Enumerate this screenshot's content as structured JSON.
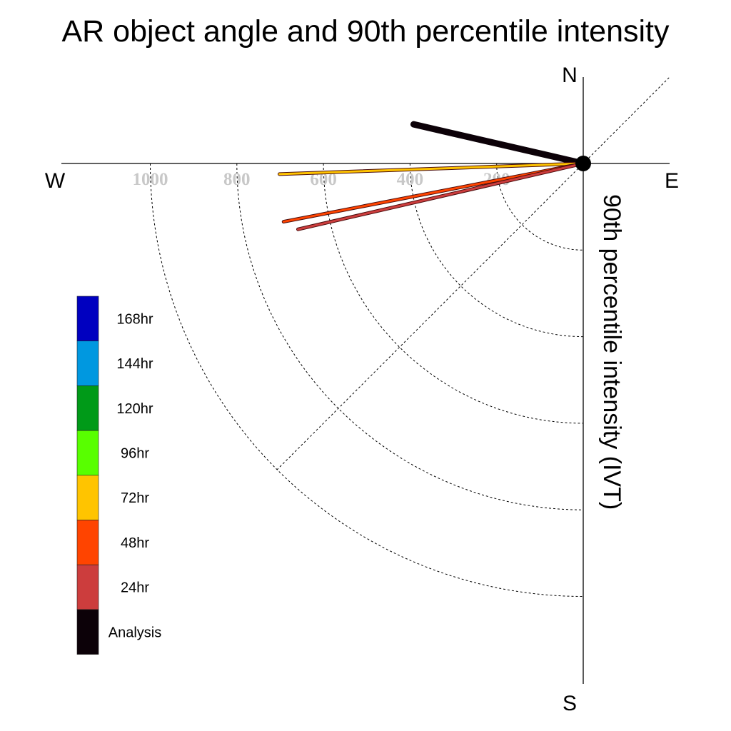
{
  "chart_data": {
    "type": "polar-vector",
    "title": "AR object angle and 90th percentile intensity",
    "radial_label": "90th percentile intensity (IVT)",
    "compass": {
      "north": "N",
      "east": "E",
      "south": "S",
      "west": "W"
    },
    "radial_ticks": [
      200,
      400,
      600,
      800,
      1000
    ],
    "radial_tick_labels": [
      "200",
      "400",
      "600",
      "800",
      "1000"
    ],
    "radial_max": 1200,
    "grid": true,
    "legend_position": "left",
    "legend": [
      {
        "label": "168hr",
        "color": "#0000c0"
      },
      {
        "label": "144hr",
        "color": "#0098e0"
      },
      {
        "label": "120hr",
        "color": "#009a18"
      },
      {
        "label": "96hr",
        "color": "#58ff00"
      },
      {
        "label": "72hr",
        "color": "#ffc400"
      },
      {
        "label": "48hr",
        "color": "#ff4400"
      },
      {
        "label": "24hr",
        "color": "#cc3d3d"
      },
      {
        "label": "Analysis",
        "color": "#0c0108"
      }
    ],
    "series": [
      {
        "name": "Analysis",
        "color": "#0c0108",
        "angle_deg": 283,
        "intensity": 402
      },
      {
        "name": "72hr",
        "color": "#ffc400",
        "angle_deg": 268,
        "intensity": 702
      },
      {
        "name": "48hr",
        "color": "#ff4400",
        "angle_deg": 259,
        "intensity": 705
      },
      {
        "name": "24hr",
        "color": "#cc3d3d",
        "angle_deg": 257,
        "intensity": 676
      }
    ]
  }
}
